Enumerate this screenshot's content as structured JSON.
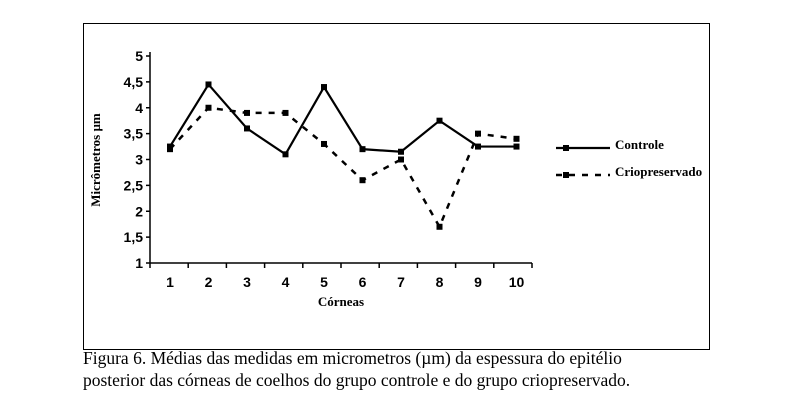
{
  "chart_data": {
    "type": "line",
    "title": "",
    "xlabel": "Córneas",
    "ylabel": "Micrômetros µm",
    "categories": [
      "1",
      "2",
      "3",
      "4",
      "5",
      "6",
      "7",
      "8",
      "9",
      "10"
    ],
    "yticks": [
      "1",
      "1,5",
      "2",
      "2,5",
      "3",
      "3,5",
      "4",
      "4,5",
      "5"
    ],
    "ylim": [
      1,
      5
    ],
    "grid": false,
    "legend_position": "right",
    "series": [
      {
        "name": "Controle",
        "style": "solid",
        "values": [
          3.25,
          4.45,
          3.6,
          3.1,
          4.4,
          3.2,
          3.15,
          3.75,
          3.25,
          3.25
        ]
      },
      {
        "name": "Criopreservado",
        "style": "dashed",
        "values": [
          3.2,
          4.0,
          3.9,
          3.9,
          3.3,
          2.6,
          3.0,
          1.7,
          3.5,
          3.4
        ]
      }
    ]
  },
  "caption": {
    "line1": "Figura 6. Médias das medidas em micrometros (µm) da espessura do epitélio",
    "line2": "posterior das córneas de coelhos do grupo controle e do grupo criopreservado."
  }
}
